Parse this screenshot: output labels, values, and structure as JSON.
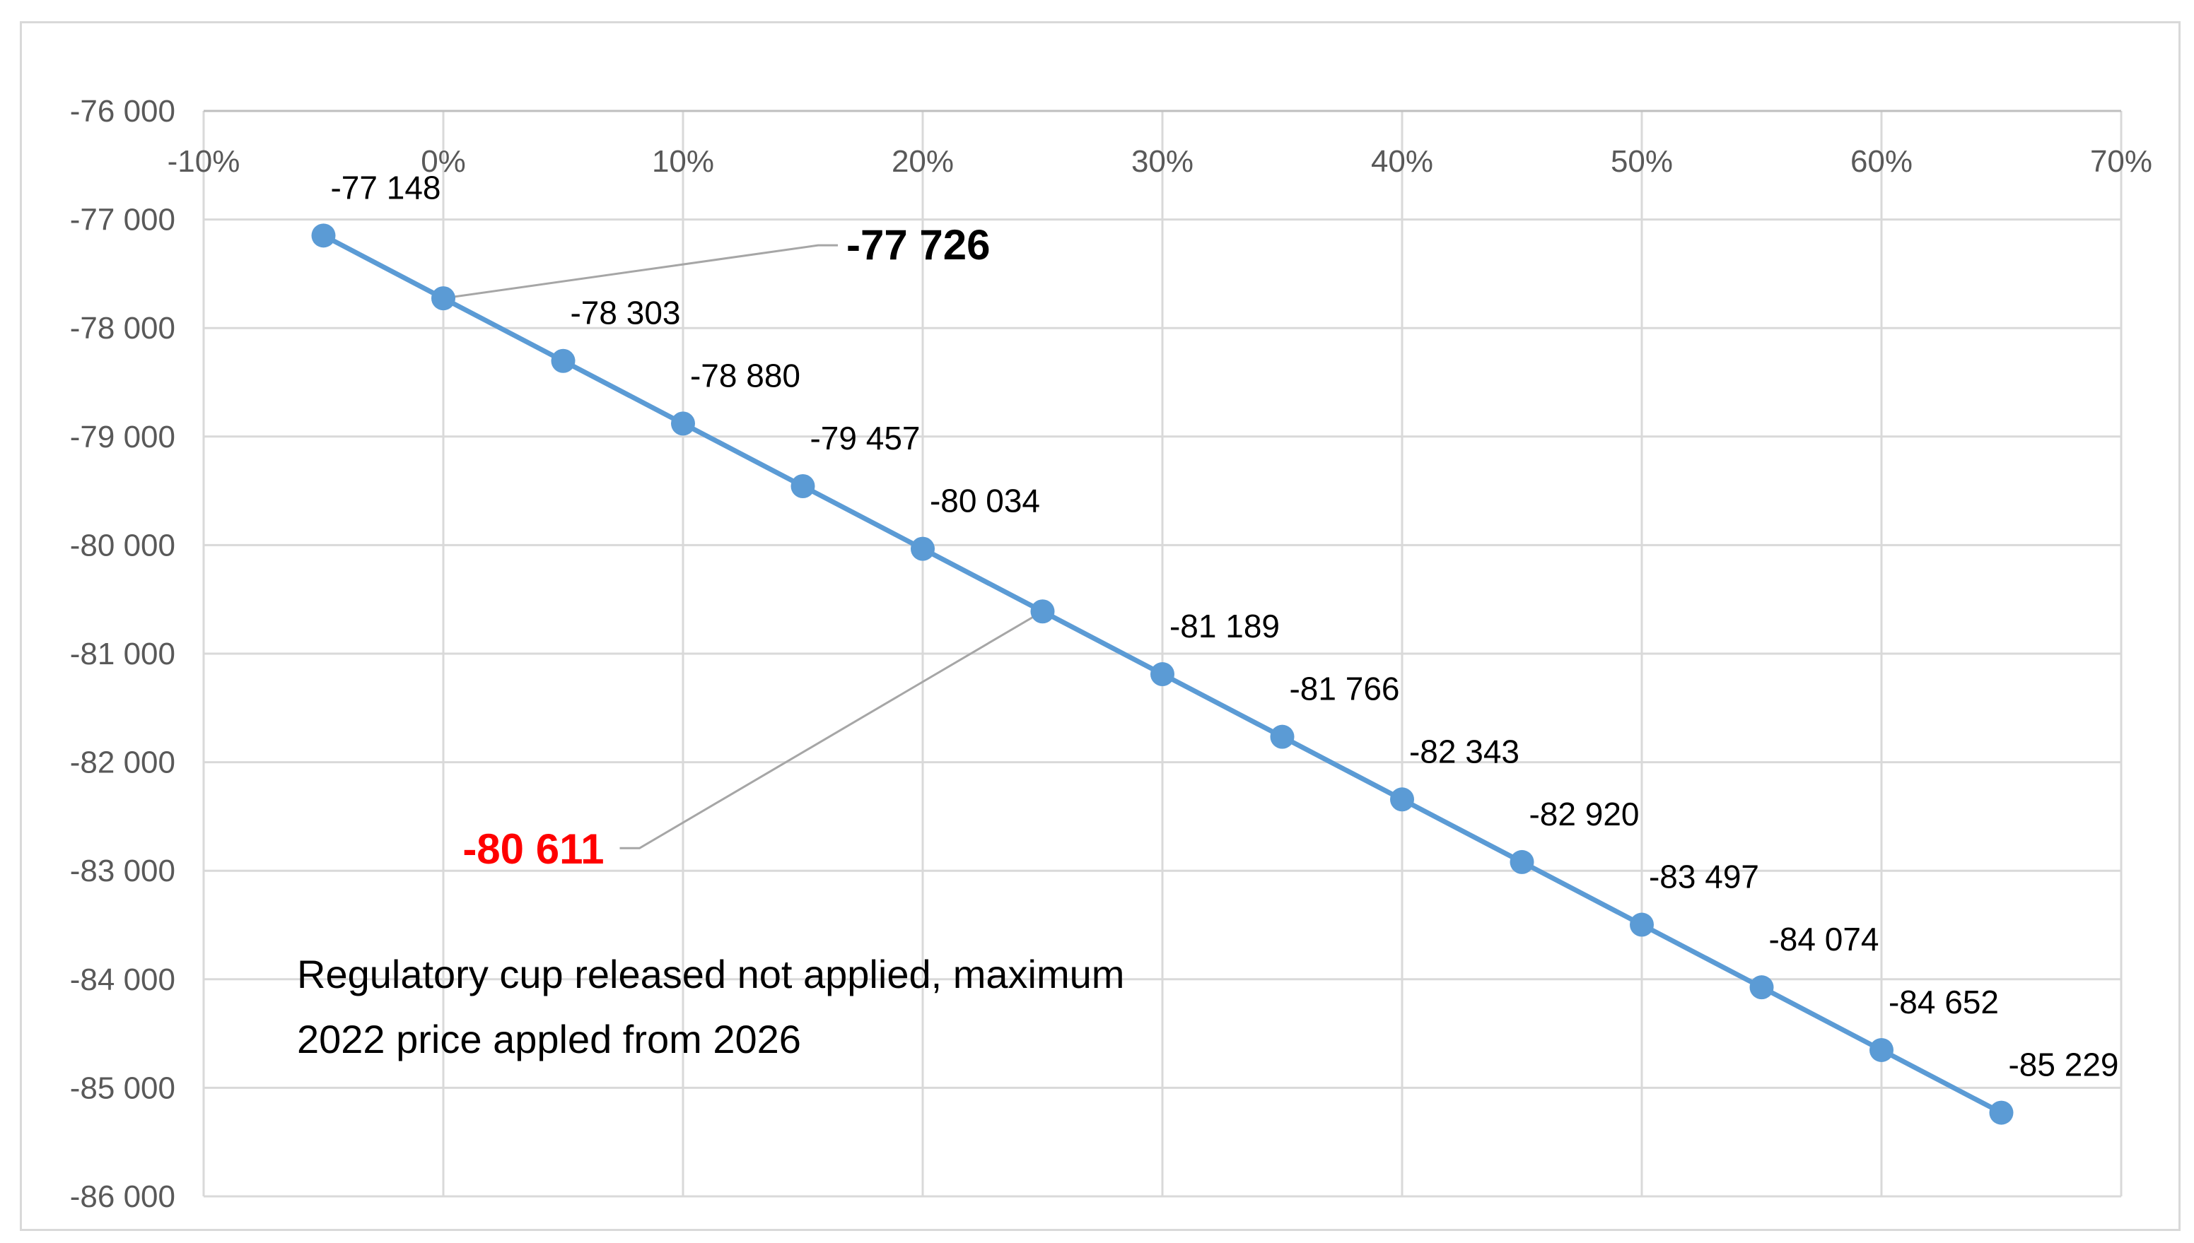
{
  "chart_data": {
    "type": "line",
    "title": "",
    "xlabel": "",
    "ylabel": "",
    "x_format": "percent",
    "xlim": [
      -0.1,
      0.7
    ],
    "x_ticks": [
      -0.1,
      0.0,
      0.1,
      0.2,
      0.3,
      0.4,
      0.5,
      0.6,
      0.7
    ],
    "x_tick_labels": [
      "-10%",
      "0%",
      "10%",
      "20%",
      "30%",
      "40%",
      "50%",
      "60%",
      "70%"
    ],
    "ylim": [
      -86000,
      -76000
    ],
    "y_ticks": [
      -76000,
      -77000,
      -78000,
      -79000,
      -80000,
      -81000,
      -82000,
      -83000,
      -84000,
      -85000,
      -86000
    ],
    "y_tick_labels": [
      "-76 000",
      "-77 000",
      "-78 000",
      "-79 000",
      "-80 000",
      "-81 000",
      "-82 000",
      "-83 000",
      "-84 000",
      "-85 000",
      "-86 000"
    ],
    "x_axis_position": "top",
    "grid": true,
    "legend": "none",
    "series_color": "#5b9bd5",
    "series": [
      {
        "x": [
          -0.05,
          0.0,
          0.05,
          0.1,
          0.15,
          0.2,
          0.25,
          0.3,
          0.35,
          0.4,
          0.45,
          0.5,
          0.55,
          0.6,
          0.65
        ],
        "values": [
          -77148,
          -77726,
          -78303,
          -78880,
          -79457,
          -80034,
          -80611,
          -81189,
          -81766,
          -82343,
          -82920,
          -83497,
          -84074,
          -84652,
          -85229
        ],
        "data_labels": [
          "-77 148",
          "",
          "-78 303",
          "-78 880",
          "-79 457",
          "-80 034",
          "",
          "-81 189",
          "-81 766",
          "-82 343",
          "-82 920",
          "-83 497",
          "-84 074",
          "-84 652",
          "-85 229"
        ]
      }
    ],
    "callouts": [
      {
        "text": "-77 726",
        "point_index": 1,
        "color": "#000000",
        "bold": true
      },
      {
        "text": "-80 611",
        "point_index": 6,
        "color": "#ff0000",
        "bold": true
      }
    ],
    "annotation": {
      "lines": [
        "Regulatory cup released not applied, maximum",
        "2022 price appled from 2026"
      ]
    }
  }
}
